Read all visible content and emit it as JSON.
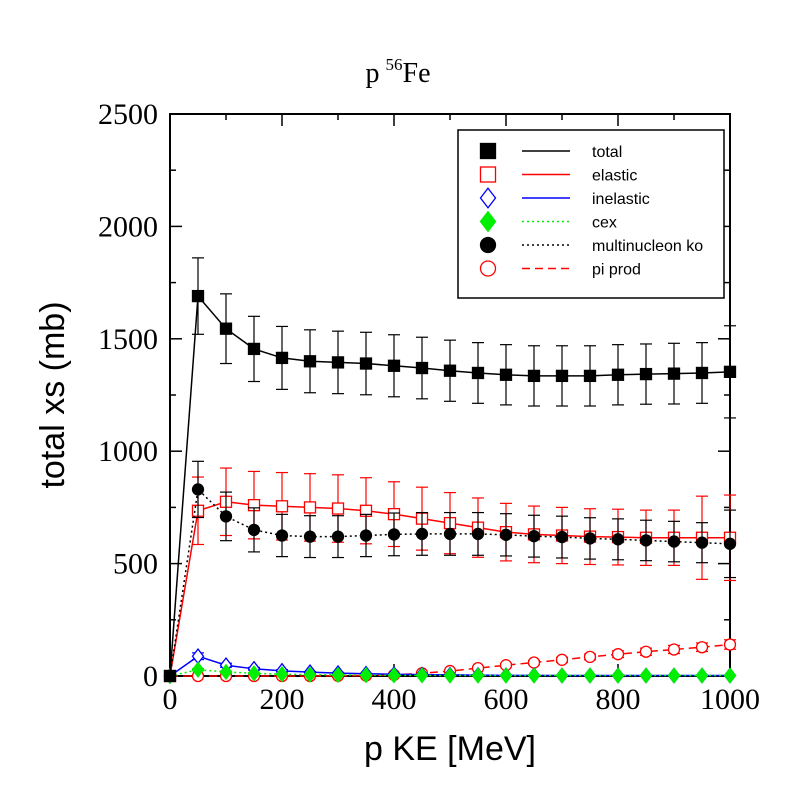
{
  "chart_data": {
    "type": "line",
    "title": {
      "main": "p",
      "superscript": "56",
      "suffix": "Fe"
    },
    "xlabel": "p KE [MeV]",
    "ylabel": "total xs (mb)",
    "xlim": [
      0,
      1000
    ],
    "ylim": [
      0,
      2500
    ],
    "xticks": [
      "0",
      "200",
      "400",
      "600",
      "800",
      "1000"
    ],
    "yticks": [
      "0",
      "500",
      "1000",
      "1500",
      "2000",
      "2500"
    ],
    "grid": false,
    "legend_position": "top-right",
    "x": [
      0,
      50,
      100,
      150,
      200,
      250,
      300,
      350,
      400,
      450,
      500,
      550,
      600,
      650,
      700,
      750,
      800,
      850,
      900,
      950,
      1000
    ],
    "series": [
      {
        "name": "total",
        "color": "#000000",
        "marker": "square-filled",
        "line": "solid",
        "values": [
          0,
          1690,
          1545,
          1455,
          1415,
          1400,
          1395,
          1390,
          1380,
          1370,
          1358,
          1348,
          1340,
          1335,
          1335,
          1335,
          1340,
          1343,
          1345,
          1348,
          1353
        ],
        "errors": [
          0,
          170,
          155,
          145,
          140,
          140,
          139,
          139,
          138,
          137,
          136,
          135,
          134,
          134,
          134,
          134,
          134,
          134,
          135,
          135,
          205
        ]
      },
      {
        "name": "elastic",
        "color": "#ff0000",
        "marker": "square-open",
        "line": "solid",
        "values": [
          0,
          735,
          775,
          760,
          755,
          750,
          745,
          735,
          720,
          700,
          680,
          660,
          640,
          630,
          625,
          620,
          618,
          615,
          615,
          615,
          615
        ],
        "errors": [
          0,
          150,
          150,
          150,
          150,
          150,
          150,
          147,
          144,
          140,
          136,
          132,
          128,
          126,
          125,
          124,
          124,
          123,
          123,
          185,
          190
        ]
      },
      {
        "name": "inelastic",
        "color": "#0000ff",
        "marker": "diamond-open",
        "line": "solid",
        "values": [
          0,
          88,
          48,
          32,
          23,
          17,
          13,
          10,
          8,
          6,
          5,
          4,
          3,
          3,
          2,
          2,
          2,
          2,
          2,
          2,
          2
        ],
        "errors": [
          0,
          15,
          9,
          6,
          5,
          3,
          3,
          2,
          2,
          1,
          1,
          1,
          1,
          1,
          0,
          0,
          0,
          0,
          0,
          0,
          0
        ]
      },
      {
        "name": "cex",
        "color": "#00ee00",
        "marker": "diamond-filled",
        "line": "dotted",
        "values": [
          0,
          28,
          18,
          12,
          8,
          6,
          5,
          4,
          3,
          3,
          2,
          2,
          2,
          2,
          2,
          2,
          2,
          2,
          2,
          2,
          2
        ],
        "errors": [
          0,
          5,
          4,
          2,
          2,
          1,
          1,
          1,
          1,
          1,
          0,
          0,
          0,
          0,
          0,
          0,
          0,
          0,
          0,
          0,
          0
        ]
      },
      {
        "name": "multinucleon ko",
        "color": "#000000",
        "marker": "circle-filled",
        "line": "dotted",
        "values": [
          0,
          830,
          710,
          650,
          625,
          620,
          620,
          625,
          630,
          632,
          632,
          632,
          628,
          622,
          618,
          612,
          608,
          603,
          598,
          593,
          588
        ],
        "errors": [
          0,
          125,
          108,
          98,
          94,
          93,
          93,
          94,
          95,
          95,
          95,
          95,
          94,
          93,
          93,
          92,
          91,
          90,
          90,
          89,
          150
        ]
      },
      {
        "name": "pi prod",
        "color": "#ff0000",
        "marker": "circle-open",
        "line": "dashed",
        "values": [
          0,
          0,
          0,
          0,
          0,
          0,
          1,
          2,
          5,
          12,
          22,
          35,
          48,
          60,
          72,
          85,
          97,
          108,
          118,
          128,
          140
        ],
        "errors": [
          0,
          0,
          0,
          0,
          0,
          0,
          0,
          0,
          1,
          2,
          4,
          6,
          7,
          9,
          11,
          13,
          15,
          16,
          18,
          19,
          21
        ]
      }
    ]
  }
}
